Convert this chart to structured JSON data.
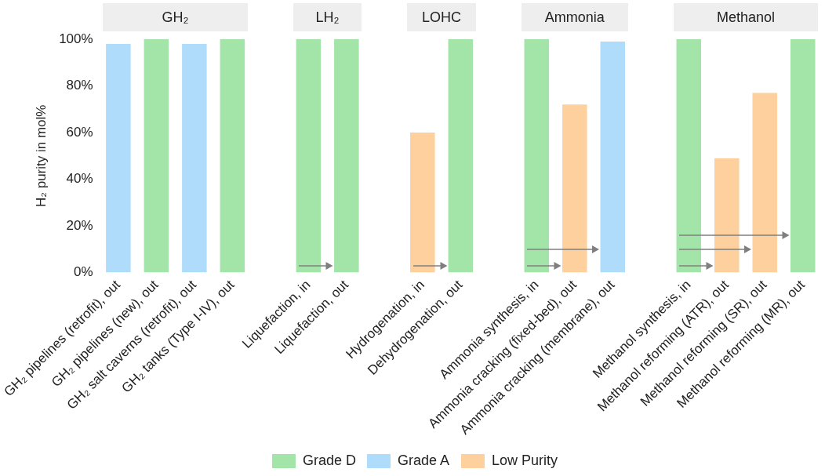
{
  "chart_data": {
    "type": "bar",
    "ylabel": "H₂ purity in mol%",
    "categories": [
      "GH₂ pipelines (retrofit), out",
      "GH₂ pipelines (new), out",
      "GH₂ salt caverns (retrofit), out",
      "GH₂ tanks (Type I-IV), out",
      null,
      "Liquefaction, in",
      "Liquefaction, out",
      null,
      "Hydrogenation, in",
      "Dehydrogenation, out",
      null,
      "Ammonia synthesis, in",
      "Ammonia cracking (fixed-bed), out",
      "Ammonia cracking (membrane), out",
      null,
      "Methanol synthesis, in",
      "Methanol reforming (ATR), out",
      "Methanol reforming (SR), out",
      "Methanol reforming (MR), out"
    ],
    "series": [
      {
        "name": "Grade D",
        "color": "#a3e4a8",
        "values": [
          null,
          100,
          null,
          100,
          null,
          100,
          100,
          null,
          null,
          100,
          null,
          100,
          null,
          null,
          null,
          100,
          null,
          null,
          100
        ]
      },
      {
        "name": "Grade A",
        "color": "#b0dcfb",
        "values": [
          98,
          null,
          98,
          null,
          null,
          null,
          null,
          null,
          null,
          null,
          null,
          null,
          null,
          99,
          null,
          null,
          null,
          null,
          null
        ]
      },
      {
        "name": "Low Purity",
        "color": "#fdd09e",
        "values": [
          null,
          null,
          null,
          null,
          null,
          null,
          null,
          null,
          60,
          null,
          null,
          null,
          72,
          null,
          null,
          null,
          49,
          77,
          null
        ]
      }
    ],
    "ylim": [
      0,
      100
    ],
    "yticks": [
      {
        "value": 0,
        "label": "0%"
      },
      {
        "value": 20,
        "label": "20%"
      },
      {
        "value": 40,
        "label": "40%"
      },
      {
        "value": 60,
        "label": "60%"
      },
      {
        "value": 80,
        "label": "80%"
      },
      {
        "value": 100,
        "label": "100%"
      }
    ],
    "grid": false,
    "legend": "bottom",
    "annotations": [
      "GH₂",
      "LH₂",
      "LOHC",
      "Ammonia",
      "Methanol"
    ]
  }
}
